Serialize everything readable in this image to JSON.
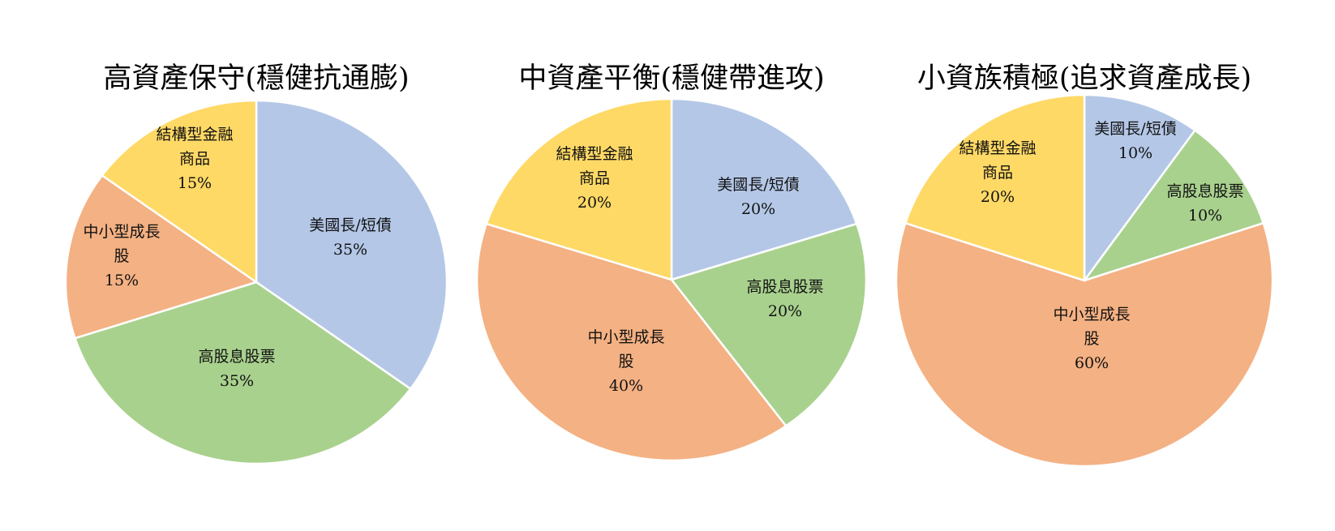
{
  "chart_data": [
    {
      "type": "pie",
      "title": "高資產保守(穩健抗通膨)",
      "slices": [
        {
          "label": [
            "美國長/短債"
          ],
          "value": 35,
          "value_label": "35%",
          "color": "#b4c7e7"
        },
        {
          "label": [
            "高股息股票"
          ],
          "value": 35,
          "value_label": "35%",
          "color": "#a9d18e"
        },
        {
          "label": [
            "中小型成長",
            "股"
          ],
          "value": 15,
          "value_label": "15%",
          "color": "#f4b183"
        },
        {
          "label": [
            "結構型金融",
            "商品"
          ],
          "value": 15,
          "value_label": "15%",
          "color": "#ffd966"
        }
      ]
    },
    {
      "type": "pie",
      "title": "中資產平衡(穩健帶進攻)",
      "slices": [
        {
          "label": [
            "美國長/短債"
          ],
          "value": 20,
          "value_label": "20%",
          "color": "#b4c7e7"
        },
        {
          "label": [
            "高股息股票"
          ],
          "value": 20,
          "value_label": "20%",
          "color": "#a9d18e"
        },
        {
          "label": [
            "中小型成長",
            "股"
          ],
          "value": 40,
          "value_label": "40%",
          "color": "#f4b183"
        },
        {
          "label": [
            "結構型金融",
            "商品"
          ],
          "value": 20,
          "value_label": "20%",
          "color": "#ffd966"
        }
      ]
    },
    {
      "type": "pie",
      "title": "小資族積極(追求資產成長)",
      "slices": [
        {
          "label": [
            "美國長/短債"
          ],
          "value": 10,
          "value_label": "10%",
          "color": "#b4c7e7"
        },
        {
          "label": [
            "高股息股票"
          ],
          "value": 10,
          "value_label": "10%",
          "color": "#a9d18e"
        },
        {
          "label": [
            "中小型成長",
            "股"
          ],
          "value": 60,
          "value_label": "60%",
          "color": "#f4b183"
        },
        {
          "label": [
            "結構型金融",
            "商品"
          ],
          "value": 20,
          "value_label": "20%",
          "color": "#ffd966"
        }
      ]
    }
  ]
}
